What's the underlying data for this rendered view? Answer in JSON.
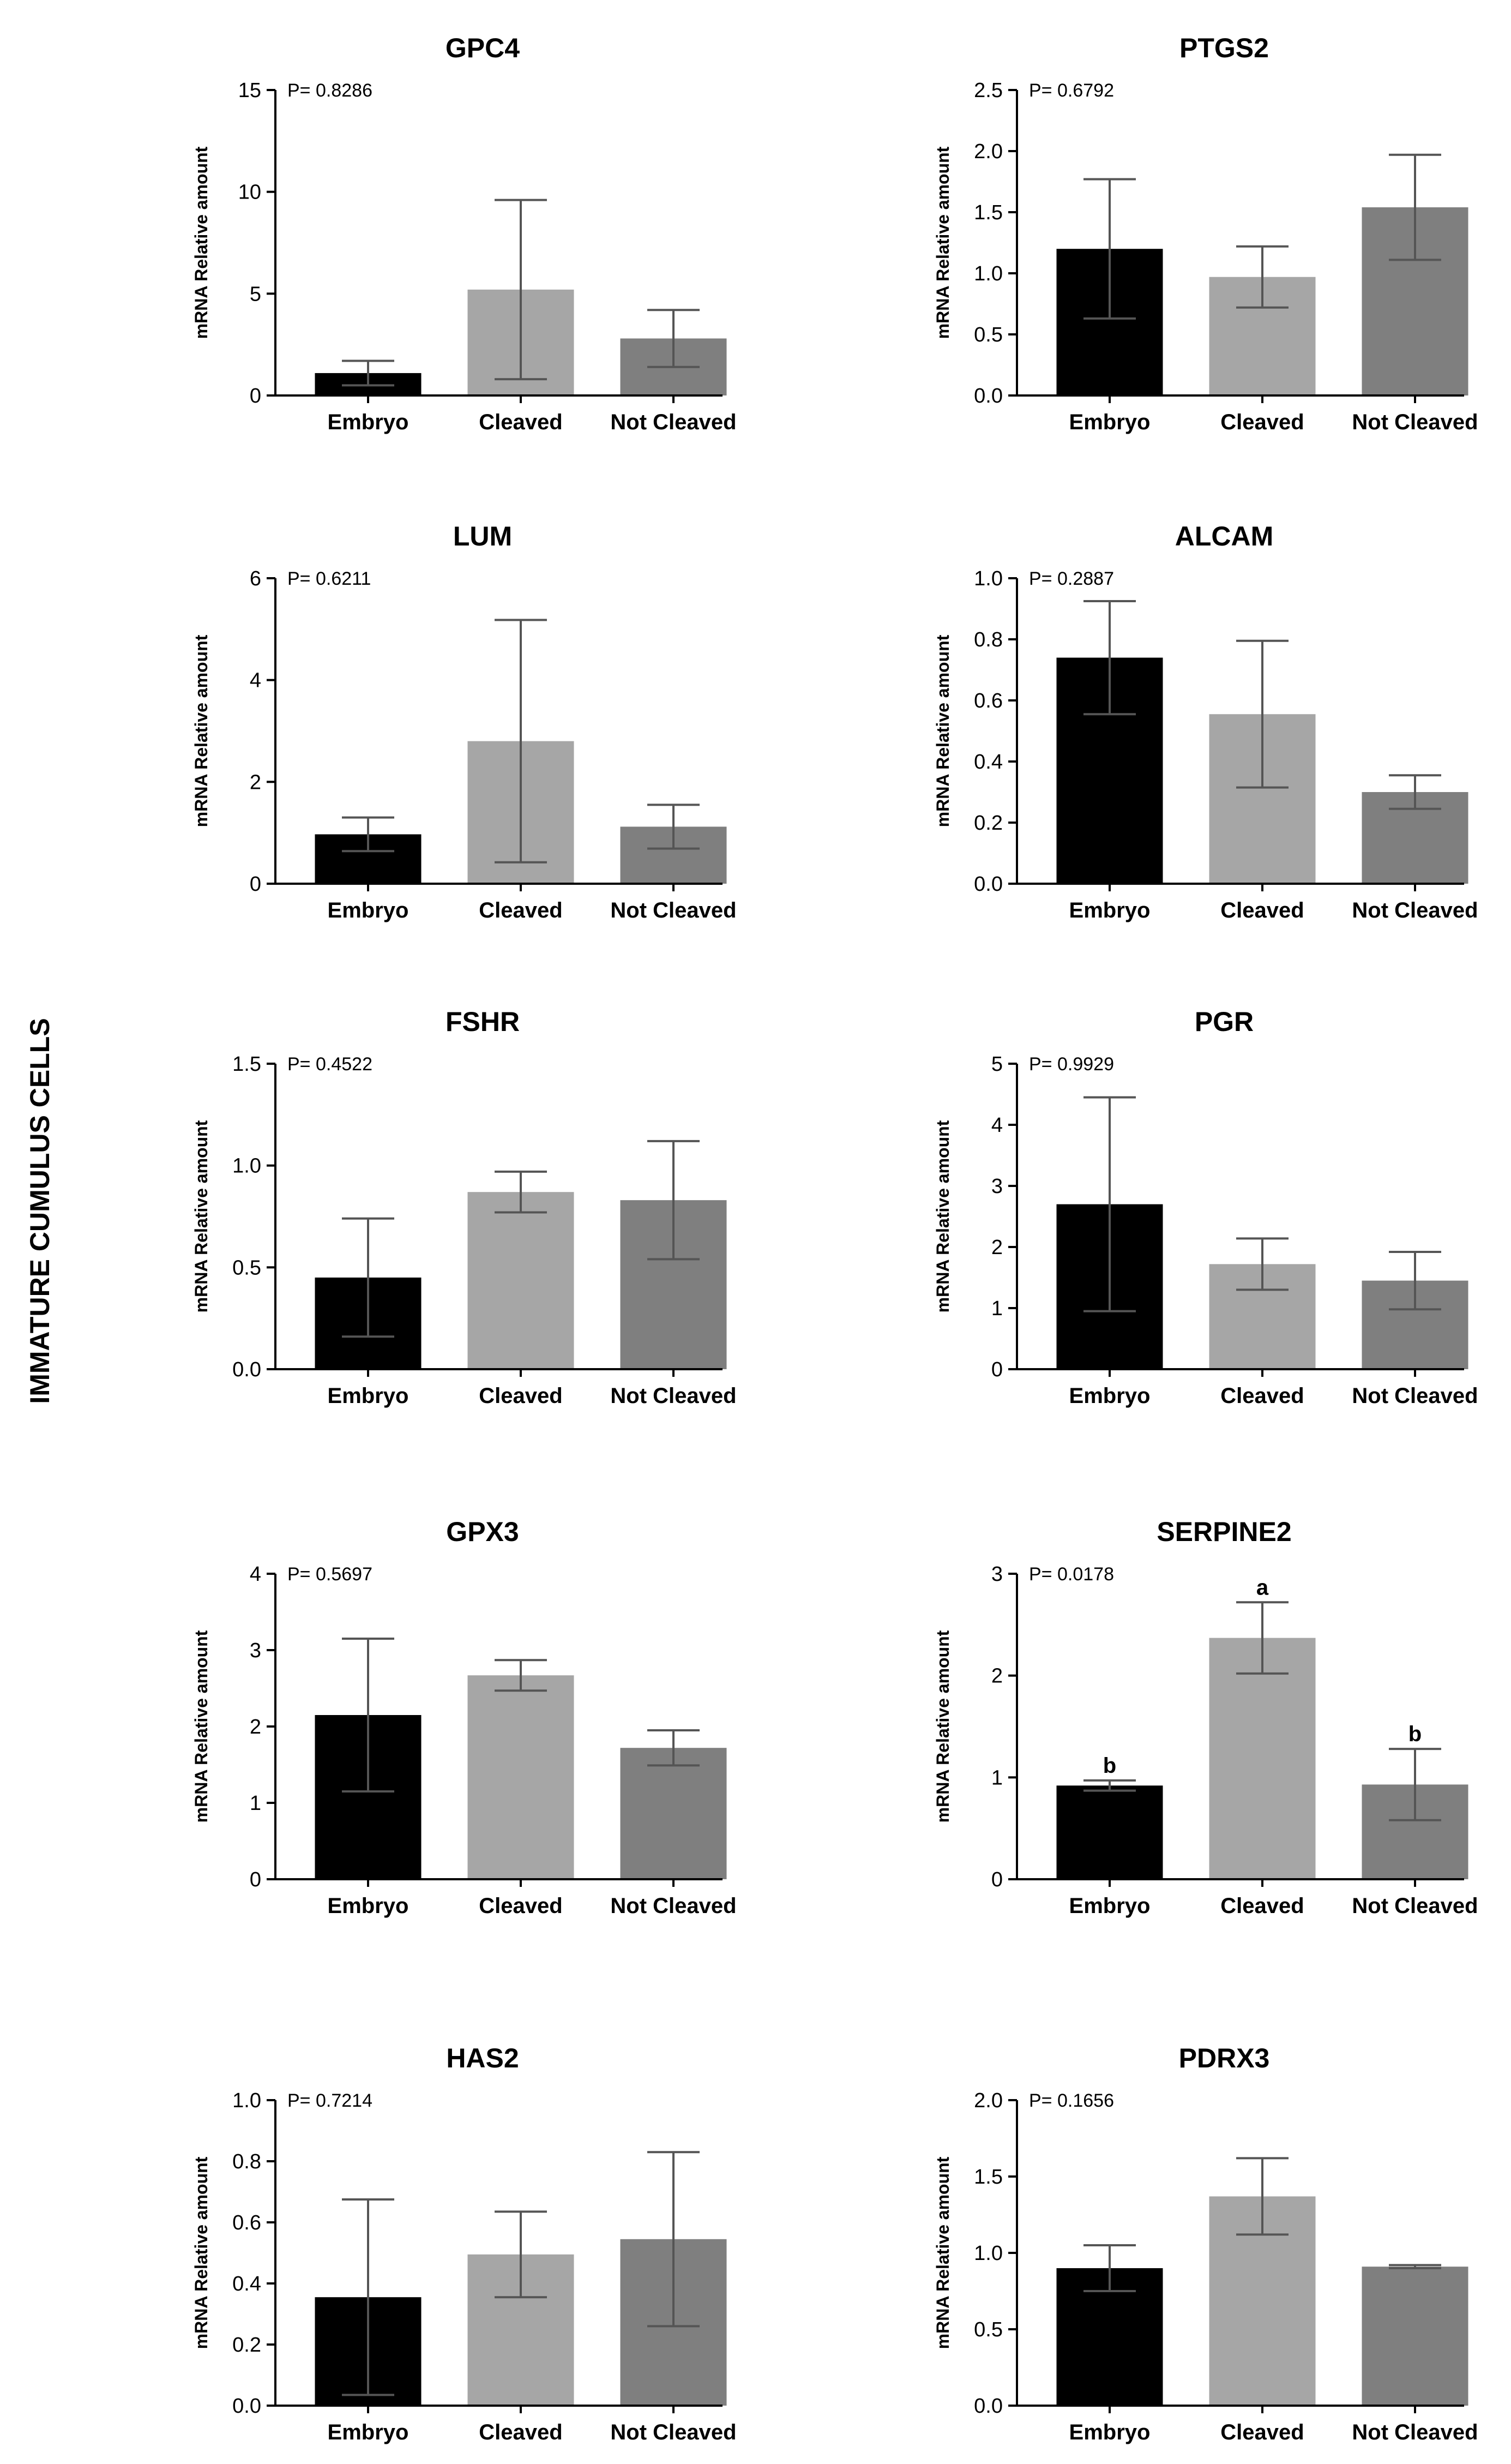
{
  "figure": {
    "side_label": "IMMATURE CUMULUS CELLS"
  },
  "colors": {
    "Embryo": "#000000",
    "Cleaved": "#a6a6a6",
    "Not Cleaved": "#7f7f7f",
    "axis": "#000000",
    "error_bar": "#555555"
  },
  "chart_data": [
    {
      "type": "bar",
      "title": "GPC4",
      "pvalue": "P= 0.8286",
      "ylabel": "mRNA Relative amount",
      "categories": [
        "Embryo",
        "Cleaved",
        "Not Cleaved"
      ],
      "values": [
        1.1,
        5.2,
        2.8
      ],
      "errors": [
        0.6,
        4.4,
        1.4
      ],
      "ylim": [
        0,
        15
      ],
      "yticks": [
        0,
        5,
        10,
        15
      ],
      "ytick_labels": [
        "0",
        "5",
        "10",
        "15"
      ],
      "letters": [
        "",
        "",
        ""
      ],
      "grid": false
    },
    {
      "type": "bar",
      "title": "PTGS2",
      "pvalue": "P= 0.6792",
      "ylabel": "mRNA Relative amount",
      "categories": [
        "Embryo",
        "Cleaved",
        "Not Cleaved"
      ],
      "values": [
        1.2,
        0.97,
        1.54
      ],
      "errors": [
        0.57,
        0.25,
        0.43
      ],
      "ylim": [
        0,
        2.5
      ],
      "yticks": [
        0,
        0.5,
        1.0,
        1.5,
        2.0,
        2.5
      ],
      "ytick_labels": [
        "0.0",
        "0.5",
        "1.0",
        "1.5",
        "2.0",
        "2.5"
      ],
      "letters": [
        "",
        "",
        ""
      ],
      "grid": false
    },
    {
      "type": "bar",
      "title": "LUM",
      "pvalue": "P= 0.6211",
      "ylabel": "mRNA Relative amount",
      "categories": [
        "Embryo",
        "Cleaved",
        "Not Cleaved"
      ],
      "values": [
        0.97,
        2.8,
        1.12
      ],
      "errors": [
        0.33,
        2.38,
        0.43
      ],
      "ylim": [
        0,
        6
      ],
      "yticks": [
        0,
        2,
        4,
        6
      ],
      "ytick_labels": [
        "0",
        "2",
        "4",
        "6"
      ],
      "letters": [
        "",
        "",
        ""
      ],
      "grid": false
    },
    {
      "type": "bar",
      "title": "ALCAM",
      "pvalue": "P= 0.2887",
      "ylabel": "mRNA Relative amount",
      "categories": [
        "Embryo",
        "Cleaved",
        "Not Cleaved"
      ],
      "values": [
        0.74,
        0.555,
        0.3
      ],
      "errors": [
        0.185,
        0.24,
        0.055
      ],
      "ylim": [
        0,
        1.0
      ],
      "yticks": [
        0,
        0.2,
        0.4,
        0.6,
        0.8,
        1.0
      ],
      "ytick_labels": [
        "0.0",
        "0.2",
        "0.4",
        "0.6",
        "0.8",
        "1.0"
      ],
      "letters": [
        "",
        "",
        ""
      ],
      "grid": false
    },
    {
      "type": "bar",
      "title": "FSHR",
      "pvalue": "P= 0.4522",
      "ylabel": "mRNA Relative amount",
      "categories": [
        "Embryo",
        "Cleaved",
        "Not Cleaved"
      ],
      "values": [
        0.45,
        0.87,
        0.83
      ],
      "errors": [
        0.29,
        0.1,
        0.29
      ],
      "ylim": [
        0,
        1.5
      ],
      "yticks": [
        0,
        0.5,
        1.0,
        1.5
      ],
      "ytick_labels": [
        "0.0",
        "0.5",
        "1.0",
        "1.5"
      ],
      "letters": [
        "",
        "",
        ""
      ],
      "grid": false
    },
    {
      "type": "bar",
      "title": "PGR",
      "pvalue": "P= 0.9929",
      "ylabel": "mRNA Relative amount",
      "categories": [
        "Embryo",
        "Cleaved",
        "Not Cleaved"
      ],
      "values": [
        2.7,
        1.72,
        1.45
      ],
      "errors": [
        1.75,
        0.42,
        0.47
      ],
      "ylim": [
        0,
        5
      ],
      "yticks": [
        0,
        1,
        2,
        3,
        4,
        5
      ],
      "ytick_labels": [
        "0",
        "1",
        "2",
        "3",
        "4",
        "5"
      ],
      "letters": [
        "",
        "",
        ""
      ],
      "grid": false
    },
    {
      "type": "bar",
      "title": "GPX3",
      "pvalue": "P= 0.5697",
      "ylabel": "mRNA Relative amount",
      "categories": [
        "Embryo",
        "Cleaved",
        "Not Cleaved"
      ],
      "values": [
        2.15,
        2.67,
        1.72
      ],
      "errors": [
        1.0,
        0.2,
        0.23
      ],
      "ylim": [
        0,
        4
      ],
      "yticks": [
        0,
        1,
        2,
        3,
        4
      ],
      "ytick_labels": [
        "0",
        "1",
        "2",
        "3",
        "4"
      ],
      "letters": [
        "",
        "",
        ""
      ],
      "grid": false
    },
    {
      "type": "bar",
      "title": "SERPINE2",
      "pvalue": "P= 0.0178",
      "ylabel": "mRNA Relative amount",
      "categories": [
        "Embryo",
        "Cleaved",
        "Not Cleaved"
      ],
      "values": [
        0.92,
        2.37,
        0.93
      ],
      "errors": [
        0.05,
        0.35,
        0.35
      ],
      "ylim": [
        0,
        3
      ],
      "yticks": [
        0,
        1,
        2,
        3
      ],
      "ytick_labels": [
        "0",
        "1",
        "2",
        "3"
      ],
      "letters": [
        "b",
        "a",
        "b"
      ],
      "grid": false
    },
    {
      "type": "bar",
      "title": "HAS2",
      "pvalue": "P= 0.7214",
      "ylabel": "mRNA Relative amount",
      "categories": [
        "Embryo",
        "Cleaved",
        "Not Cleaved"
      ],
      "values": [
        0.355,
        0.495,
        0.545
      ],
      "errors": [
        0.32,
        0.14,
        0.285
      ],
      "ylim": [
        0,
        1.0
      ],
      "yticks": [
        0,
        0.2,
        0.4,
        0.6,
        0.8,
        1.0
      ],
      "ytick_labels": [
        "0.0",
        "0.2",
        "0.4",
        "0.6",
        "0.8",
        "1.0"
      ],
      "letters": [
        "",
        "",
        ""
      ],
      "grid": false
    },
    {
      "type": "bar",
      "title": "PDRX3",
      "pvalue": "P= 0.1656",
      "ylabel": "mRNA Relative amount",
      "categories": [
        "Embryo",
        "Cleaved",
        "Not Cleaved"
      ],
      "values": [
        0.9,
        1.37,
        0.91
      ],
      "errors": [
        0.15,
        0.25,
        0.01
      ],
      "ylim": [
        0,
        2.0
      ],
      "yticks": [
        0,
        0.5,
        1.0,
        1.5,
        2.0
      ],
      "ytick_labels": [
        "0.0",
        "0.5",
        "1.0",
        "1.5",
        "2.0"
      ],
      "letters": [
        "",
        "",
        ""
      ],
      "grid": false
    }
  ]
}
